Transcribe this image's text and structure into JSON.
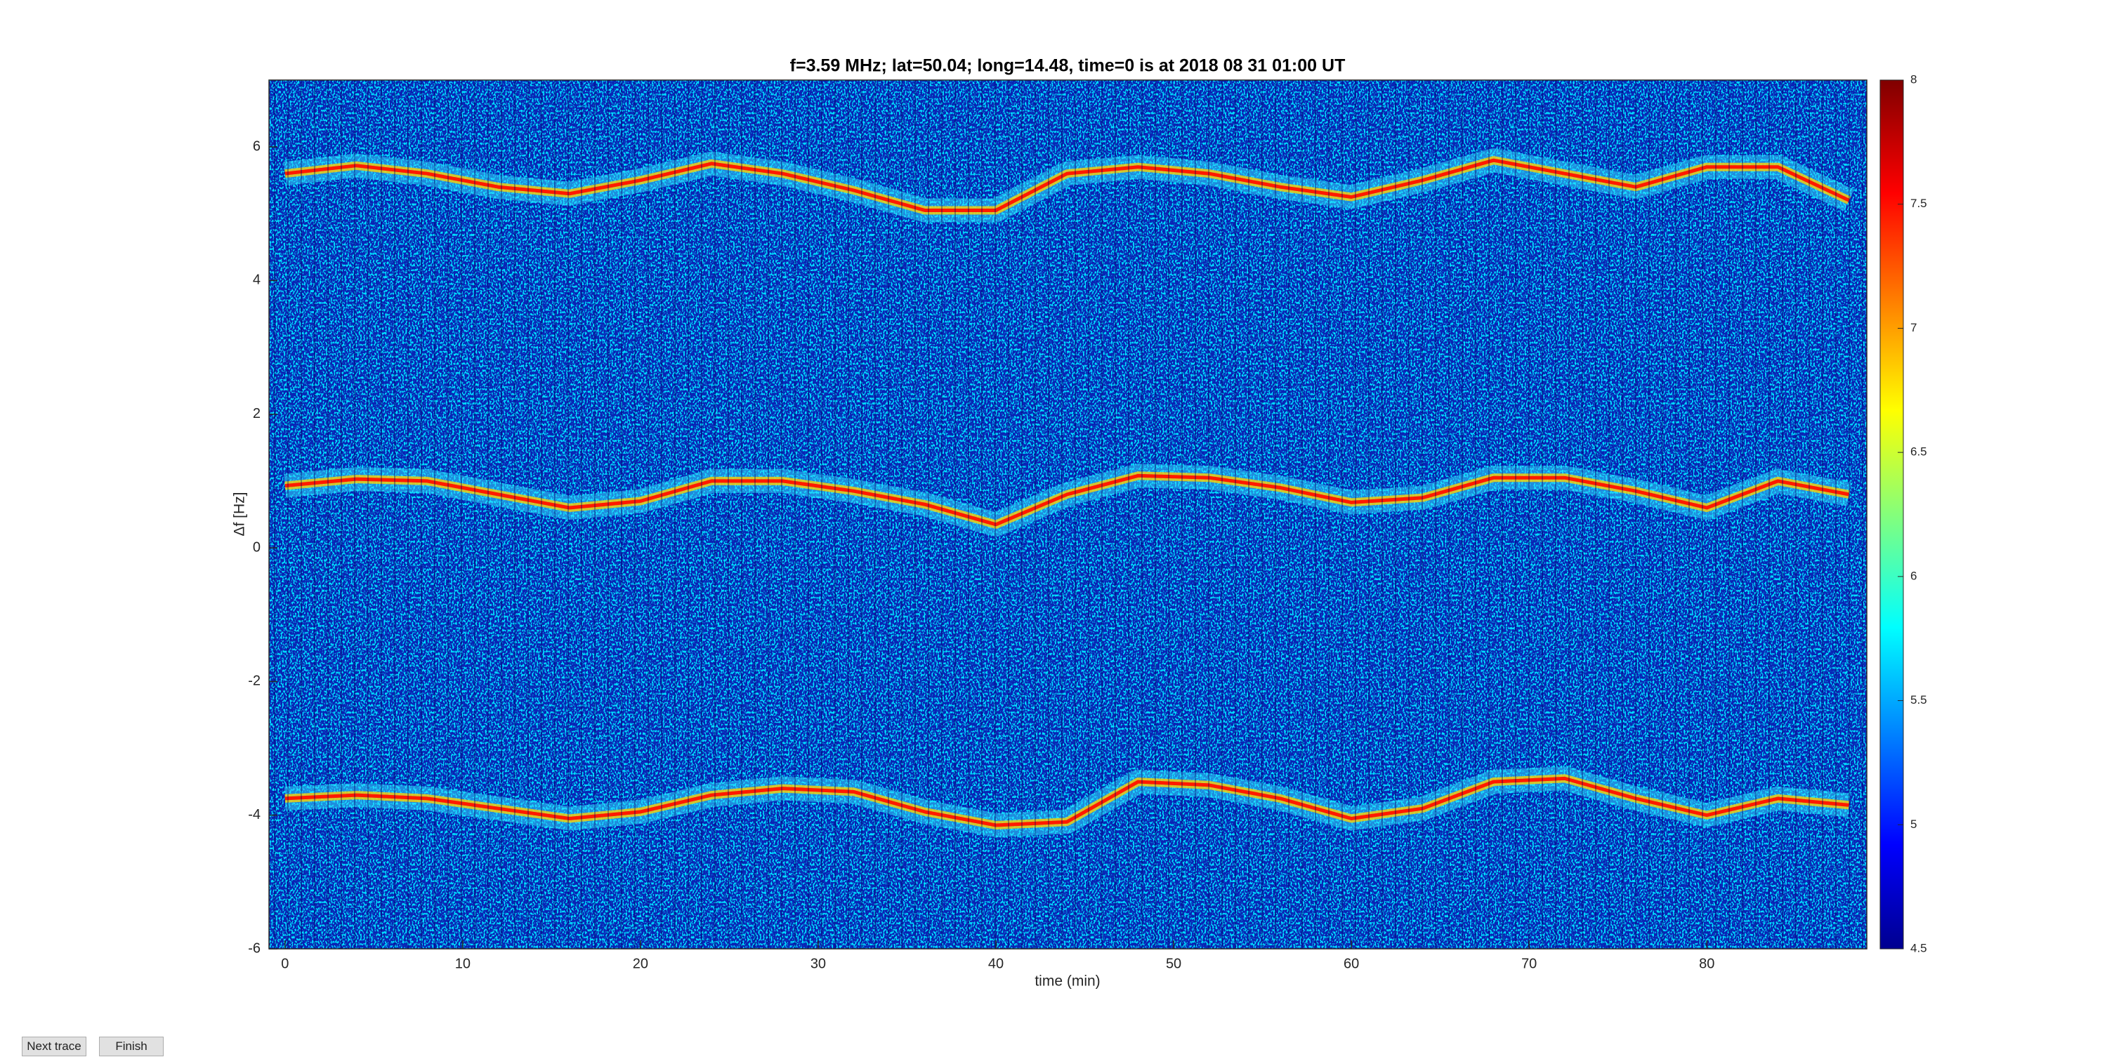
{
  "chart_data": {
    "type": "spectrogram",
    "title": "f=3.59 MHz;  lat=50.04; long=14.48, time=0 is at 2018 08 31 01:00 UT",
    "x_label": "time (min)",
    "y_label": "Δf [Hz]",
    "x": [
      0,
      4,
      8,
      12,
      16,
      20,
      24,
      28,
      32,
      36,
      40,
      44,
      48,
      52,
      56,
      60,
      64,
      68,
      72,
      76,
      80,
      84,
      88
    ],
    "series": [
      {
        "color": "#ff1a00",
        "values": [
          5.6,
          5.72,
          5.6,
          5.4,
          5.3,
          5.5,
          5.75,
          5.6,
          5.35,
          5.05,
          5.05,
          5.6,
          5.7,
          5.6,
          5.4,
          5.25,
          5.5,
          5.8,
          5.6,
          5.4,
          5.7,
          5.7,
          5.2
        ]
      },
      {
        "color": "#ff1a00",
        "values": [
          0.93,
          1.03,
          1.0,
          0.8,
          0.6,
          0.7,
          1.0,
          1.0,
          0.85,
          0.65,
          0.35,
          0.8,
          1.08,
          1.05,
          0.9,
          0.68,
          0.75,
          1.05,
          1.05,
          0.85,
          0.6,
          1.0,
          0.8
        ]
      },
      {
        "color": "#ff1a00",
        "values": [
          -3.75,
          -3.7,
          -3.75,
          -3.9,
          -4.05,
          -3.95,
          -3.7,
          -3.6,
          -3.65,
          -3.95,
          -4.15,
          -4.1,
          -3.5,
          -3.55,
          -3.75,
          -4.05,
          -3.9,
          -3.5,
          -3.45,
          -3.75,
          -4.0,
          -3.75,
          -3.85
        ]
      }
    ],
    "xlim": [
      -0.9,
      89
    ],
    "xticks": [
      0,
      10,
      20,
      30,
      40,
      50,
      60,
      70,
      80
    ],
    "ylim": [
      -6,
      7
    ],
    "yticks": [
      -6,
      -4,
      -2,
      0,
      2,
      4,
      6
    ],
    "colormap": "jet",
    "clim": [
      4.5,
      8
    ],
    "cticks": [
      4.5,
      5,
      5.5,
      6,
      6.5,
      7,
      7.5,
      8
    ]
  },
  "buttons": {
    "next": "Next trace",
    "finish": "Finish"
  }
}
